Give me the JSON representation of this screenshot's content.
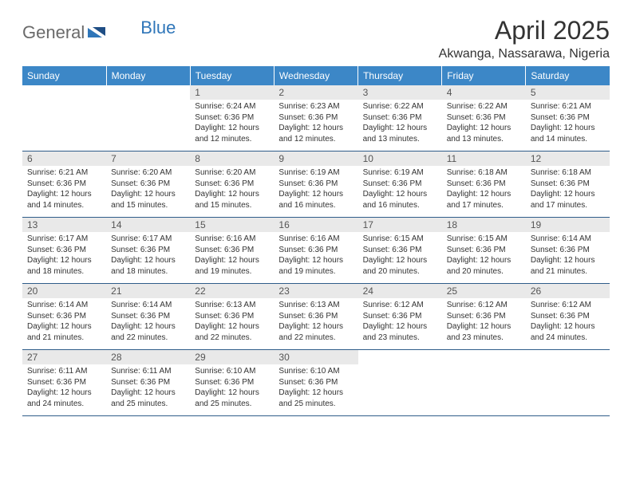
{
  "brand": {
    "name_part1": "General",
    "name_part2": "Blue",
    "color_gray": "#6a6a6a",
    "color_blue": "#2f76b9"
  },
  "header": {
    "month_title": "April 2025",
    "location": "Akwanga, Nassarawa, Nigeria"
  },
  "colors": {
    "header_bg": "#3c87c7",
    "header_text": "#ffffff",
    "daynum_bg": "#e9e9e9",
    "border": "#2f5d8a"
  },
  "day_names": [
    "Sunday",
    "Monday",
    "Tuesday",
    "Wednesday",
    "Thursday",
    "Friday",
    "Saturday"
  ],
  "weeks": [
    [
      null,
      null,
      {
        "n": "1",
        "sr": "6:24 AM",
        "ss": "6:36 PM",
        "dl": "12 hours and 12 minutes."
      },
      {
        "n": "2",
        "sr": "6:23 AM",
        "ss": "6:36 PM",
        "dl": "12 hours and 12 minutes."
      },
      {
        "n": "3",
        "sr": "6:22 AM",
        "ss": "6:36 PM",
        "dl": "12 hours and 13 minutes."
      },
      {
        "n": "4",
        "sr": "6:22 AM",
        "ss": "6:36 PM",
        "dl": "12 hours and 13 minutes."
      },
      {
        "n": "5",
        "sr": "6:21 AM",
        "ss": "6:36 PM",
        "dl": "12 hours and 14 minutes."
      }
    ],
    [
      {
        "n": "6",
        "sr": "6:21 AM",
        "ss": "6:36 PM",
        "dl": "12 hours and 14 minutes."
      },
      {
        "n": "7",
        "sr": "6:20 AM",
        "ss": "6:36 PM",
        "dl": "12 hours and 15 minutes."
      },
      {
        "n": "8",
        "sr": "6:20 AM",
        "ss": "6:36 PM",
        "dl": "12 hours and 15 minutes."
      },
      {
        "n": "9",
        "sr": "6:19 AM",
        "ss": "6:36 PM",
        "dl": "12 hours and 16 minutes."
      },
      {
        "n": "10",
        "sr": "6:19 AM",
        "ss": "6:36 PM",
        "dl": "12 hours and 16 minutes."
      },
      {
        "n": "11",
        "sr": "6:18 AM",
        "ss": "6:36 PM",
        "dl": "12 hours and 17 minutes."
      },
      {
        "n": "12",
        "sr": "6:18 AM",
        "ss": "6:36 PM",
        "dl": "12 hours and 17 minutes."
      }
    ],
    [
      {
        "n": "13",
        "sr": "6:17 AM",
        "ss": "6:36 PM",
        "dl": "12 hours and 18 minutes."
      },
      {
        "n": "14",
        "sr": "6:17 AM",
        "ss": "6:36 PM",
        "dl": "12 hours and 18 minutes."
      },
      {
        "n": "15",
        "sr": "6:16 AM",
        "ss": "6:36 PM",
        "dl": "12 hours and 19 minutes."
      },
      {
        "n": "16",
        "sr": "6:16 AM",
        "ss": "6:36 PM",
        "dl": "12 hours and 19 minutes."
      },
      {
        "n": "17",
        "sr": "6:15 AM",
        "ss": "6:36 PM",
        "dl": "12 hours and 20 minutes."
      },
      {
        "n": "18",
        "sr": "6:15 AM",
        "ss": "6:36 PM",
        "dl": "12 hours and 20 minutes."
      },
      {
        "n": "19",
        "sr": "6:14 AM",
        "ss": "6:36 PM",
        "dl": "12 hours and 21 minutes."
      }
    ],
    [
      {
        "n": "20",
        "sr": "6:14 AM",
        "ss": "6:36 PM",
        "dl": "12 hours and 21 minutes."
      },
      {
        "n": "21",
        "sr": "6:14 AM",
        "ss": "6:36 PM",
        "dl": "12 hours and 22 minutes."
      },
      {
        "n": "22",
        "sr": "6:13 AM",
        "ss": "6:36 PM",
        "dl": "12 hours and 22 minutes."
      },
      {
        "n": "23",
        "sr": "6:13 AM",
        "ss": "6:36 PM",
        "dl": "12 hours and 22 minutes."
      },
      {
        "n": "24",
        "sr": "6:12 AM",
        "ss": "6:36 PM",
        "dl": "12 hours and 23 minutes."
      },
      {
        "n": "25",
        "sr": "6:12 AM",
        "ss": "6:36 PM",
        "dl": "12 hours and 23 minutes."
      },
      {
        "n": "26",
        "sr": "6:12 AM",
        "ss": "6:36 PM",
        "dl": "12 hours and 24 minutes."
      }
    ],
    [
      {
        "n": "27",
        "sr": "6:11 AM",
        "ss": "6:36 PM",
        "dl": "12 hours and 24 minutes."
      },
      {
        "n": "28",
        "sr": "6:11 AM",
        "ss": "6:36 PM",
        "dl": "12 hours and 25 minutes."
      },
      {
        "n": "29",
        "sr": "6:10 AM",
        "ss": "6:36 PM",
        "dl": "12 hours and 25 minutes."
      },
      {
        "n": "30",
        "sr": "6:10 AM",
        "ss": "6:36 PM",
        "dl": "12 hours and 25 minutes."
      },
      null,
      null,
      null
    ]
  ],
  "labels": {
    "sunrise": "Sunrise: ",
    "sunset": "Sunset: ",
    "daylight": "Daylight: "
  }
}
